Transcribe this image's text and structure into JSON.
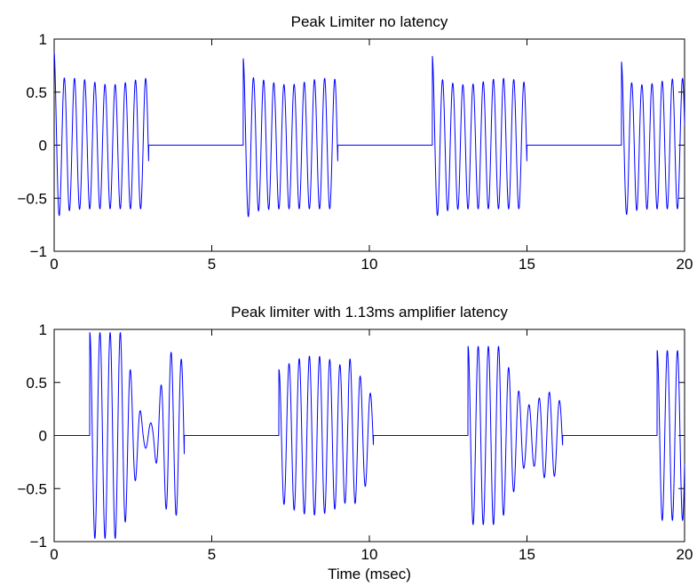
{
  "colors": {
    "trace": "#0000ff",
    "axes": "#000000",
    "background": "#ffffff"
  },
  "chart_data": [
    {
      "type": "line",
      "title": "Peak Limiter no latency",
      "xlabel": "",
      "ylabel": "",
      "xlim": [
        0,
        20
      ],
      "ylim": [
        -1,
        1
      ],
      "xticks": [
        0,
        5,
        10,
        15,
        20
      ],
      "xtick_labels": [
        "0",
        "5",
        "10",
        "15",
        "20"
      ],
      "yticks": [
        1,
        0.5,
        0,
        -0.5,
        -1
      ],
      "ytick_labels": [
        "1",
        "0.5",
        "0",
        "−0.5",
        "−1"
      ],
      "grid": false,
      "series": [
        {
          "signal": "tone bursts (approx. 3 kHz) of 3 ms every 6 ms, limited to about ±0.6 with an initial overshoot",
          "burst_starts_ms": [
            0,
            6,
            12,
            18
          ],
          "burst_duration_ms": 3,
          "carrier_khz": 3.1,
          "steady_amplitude": 0.6,
          "peak_amplitudes": [
            0.88,
            0.79,
            0.81,
            0.78
          ],
          "trough_amplitudes": [
            -0.72,
            -0.74,
            -0.72,
            -0.7
          ]
        }
      ]
    },
    {
      "type": "line",
      "title": "Peak limiter with 1.13ms amplifier latency",
      "xlabel": "Time (msec)",
      "ylabel": "",
      "xlim": [
        0,
        20
      ],
      "ylim": [
        -1,
        1
      ],
      "xticks": [
        0,
        5,
        10,
        15,
        20
      ],
      "xtick_labels": [
        "0",
        "5",
        "10",
        "15",
        "20"
      ],
      "yticks": [
        1,
        0.5,
        0,
        -0.5,
        -1
      ],
      "ytick_labels": [
        "1",
        "0.5",
        "0",
        "−0.5",
        "−1"
      ],
      "grid": false,
      "series": [
        {
          "signal": "tone bursts delayed by 1.13 ms with a gain envelope that dips after each burst onset",
          "burst_starts_ms": [
            1.13,
            7.13,
            13.13,
            19.13
          ],
          "burst_duration_ms": 3,
          "carrier_khz": 3.1,
          "peak_amplitudes": [
            0.97,
            0.75,
            0.84,
            0.8
          ],
          "trough_amplitudes": [
            -0.97,
            -0.75,
            -0.84,
            -0.8
          ]
        }
      ]
    }
  ]
}
